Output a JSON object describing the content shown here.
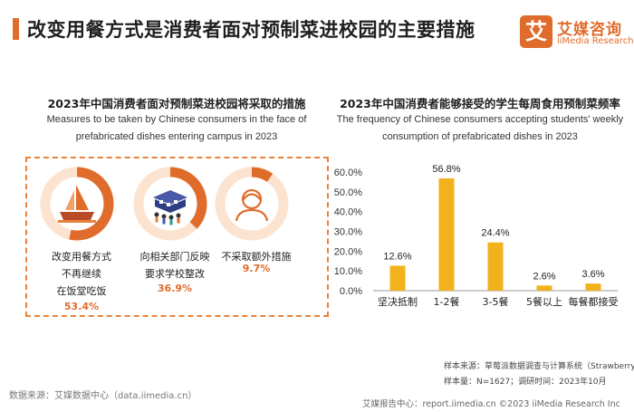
{
  "header": {
    "title": "改变用餐方式是消费者面对预制菜进校园的主要措施",
    "logo_mark": "艾",
    "logo_cn": "艾媒咨询",
    "logo_en": "iiMedia Research"
  },
  "left_panel": {
    "title": "2023年中国消费者面对预制菜进校园将采取的措施",
    "subtitle": "Measures to be taken by Chinese consumers in the face of prefabricated dishes entering campus in 2023",
    "subtitle_lines": [
      "Measures to be taken by Chinese consumers in the face of",
      "prefabricated dishes entering campus in 2023"
    ],
    "measures": [
      {
        "lines": [
          "改变用餐方式",
          "不再继续",
          "在饭堂吃饭"
        ],
        "percent": "53.4%",
        "value": 53.4,
        "icon": "ship-icon"
      },
      {
        "lines": [
          "向相关部门反映",
          "要求学校整改"
        ],
        "percent": "36.9%",
        "value": 36.9,
        "icon": "school-crowd-icon"
      },
      {
        "lines": [
          "不采取额外措施"
        ],
        "percent": "9.7%",
        "value": 9.7,
        "icon": "person-icon"
      }
    ]
  },
  "right_panel": {
    "title": "2023年中国消费者能够接受的学生每周食用预制菜频率",
    "subtitle": "The frequency of Chinese consumers accepting students' weekly consumption of prefabricated dishes in 2023",
    "subtitle_lines": [
      "The frequency of Chinese consumers accepting students' weekly",
      "consumption of prefabricated dishes in 2023"
    ]
  },
  "chart_data": {
    "type": "bar",
    "categories": [
      "坚决抵制",
      "1-2餐",
      "3-5餐",
      "5餐以上",
      "每餐都接受"
    ],
    "values": [
      12.6,
      56.8,
      24.4,
      2.6,
      3.6
    ],
    "data_labels": [
      "12.6%",
      "56.8%",
      "24.4%",
      "2.6%",
      "3.6%"
    ],
    "y_ticks": [
      "0.0%",
      "10.0%",
      "20.0%",
      "30.0%",
      "40.0%",
      "50.0%",
      "60.0%"
    ],
    "ylim": [
      0,
      60
    ],
    "grid": false,
    "bar_color": "#f2b21b"
  },
  "notes": {
    "sample_source": "样本来源：草莓派数据调查与计算系统（Strawberry Pie）",
    "sample_size": "样本量：N=1627；调研时间：2023年10月"
  },
  "footer": {
    "source": "数据来源：艾媒数据中心（data.iimedia.cn）",
    "right": "艾媒报告中心：report.iimedia.cn  ©2023  iiMedia Research  Inc"
  },
  "colors": {
    "accent": "#e06c2c",
    "ring_track": "#fbe3cf",
    "bar": "#f2b21b"
  }
}
